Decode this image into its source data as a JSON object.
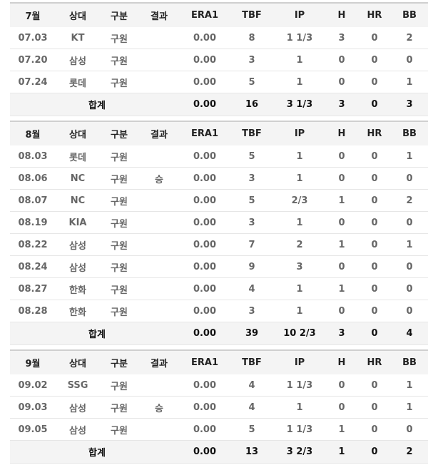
{
  "columns": [
    "상대",
    "구분",
    "결과",
    "ERA1",
    "TBF",
    "IP",
    "H",
    "HR",
    "BB"
  ],
  "total_label": "합계",
  "months": [
    {
      "month": "7월",
      "games": [
        {
          "date": "07.03",
          "opp": "KT",
          "role": "구원",
          "result": "",
          "era": "0.00",
          "tbf": "8",
          "ip": "1 1/3",
          "h": "3",
          "hr": "0",
          "bb": "2"
        },
        {
          "date": "07.20",
          "opp": "삼성",
          "role": "구원",
          "result": "",
          "era": "0.00",
          "tbf": "3",
          "ip": "1",
          "h": "0",
          "hr": "0",
          "bb": "0"
        },
        {
          "date": "07.24",
          "opp": "롯데",
          "role": "구원",
          "result": "",
          "era": "0.00",
          "tbf": "5",
          "ip": "1",
          "h": "0",
          "hr": "0",
          "bb": "1"
        }
      ],
      "total": {
        "era": "0.00",
        "tbf": "16",
        "ip": "3 1/3",
        "h": "3",
        "hr": "0",
        "bb": "3"
      }
    },
    {
      "month": "8월",
      "games": [
        {
          "date": "08.03",
          "opp": "롯데",
          "role": "구원",
          "result": "",
          "era": "0.00",
          "tbf": "5",
          "ip": "1",
          "h": "0",
          "hr": "0",
          "bb": "1"
        },
        {
          "date": "08.06",
          "opp": "NC",
          "role": "구원",
          "result": "승",
          "era": "0.00",
          "tbf": "3",
          "ip": "1",
          "h": "0",
          "hr": "0",
          "bb": "0"
        },
        {
          "date": "08.07",
          "opp": "NC",
          "role": "구원",
          "result": "",
          "era": "0.00",
          "tbf": "5",
          "ip": "2/3",
          "h": "1",
          "hr": "0",
          "bb": "2"
        },
        {
          "date": "08.19",
          "opp": "KIA",
          "role": "구원",
          "result": "",
          "era": "0.00",
          "tbf": "3",
          "ip": "1",
          "h": "0",
          "hr": "0",
          "bb": "0"
        },
        {
          "date": "08.22",
          "opp": "삼성",
          "role": "구원",
          "result": "",
          "era": "0.00",
          "tbf": "7",
          "ip": "2",
          "h": "1",
          "hr": "0",
          "bb": "1"
        },
        {
          "date": "08.24",
          "opp": "삼성",
          "role": "구원",
          "result": "",
          "era": "0.00",
          "tbf": "9",
          "ip": "3",
          "h": "0",
          "hr": "0",
          "bb": "0"
        },
        {
          "date": "08.27",
          "opp": "한화",
          "role": "구원",
          "result": "",
          "era": "0.00",
          "tbf": "4",
          "ip": "1",
          "h": "1",
          "hr": "0",
          "bb": "0"
        },
        {
          "date": "08.28",
          "opp": "한화",
          "role": "구원",
          "result": "",
          "era": "0.00",
          "tbf": "3",
          "ip": "1",
          "h": "0",
          "hr": "0",
          "bb": "0"
        }
      ],
      "total": {
        "era": "0.00",
        "tbf": "39",
        "ip": "10 2/3",
        "h": "3",
        "hr": "0",
        "bb": "4"
      }
    },
    {
      "month": "9월",
      "games": [
        {
          "date": "09.02",
          "opp": "SSG",
          "role": "구원",
          "result": "",
          "era": "0.00",
          "tbf": "4",
          "ip": "1 1/3",
          "h": "0",
          "hr": "0",
          "bb": "1"
        },
        {
          "date": "09.03",
          "opp": "삼성",
          "role": "구원",
          "result": "승",
          "era": "0.00",
          "tbf": "4",
          "ip": "1",
          "h": "0",
          "hr": "0",
          "bb": "1"
        },
        {
          "date": "09.05",
          "opp": "삼성",
          "role": "구원",
          "result": "",
          "era": "0.00",
          "tbf": "5",
          "ip": "1 1/3",
          "h": "1",
          "hr": "0",
          "bb": "0"
        }
      ],
      "total": {
        "era": "0.00",
        "tbf": "13",
        "ip": "3 2/3",
        "h": "1",
        "hr": "0",
        "bb": "2"
      }
    }
  ]
}
